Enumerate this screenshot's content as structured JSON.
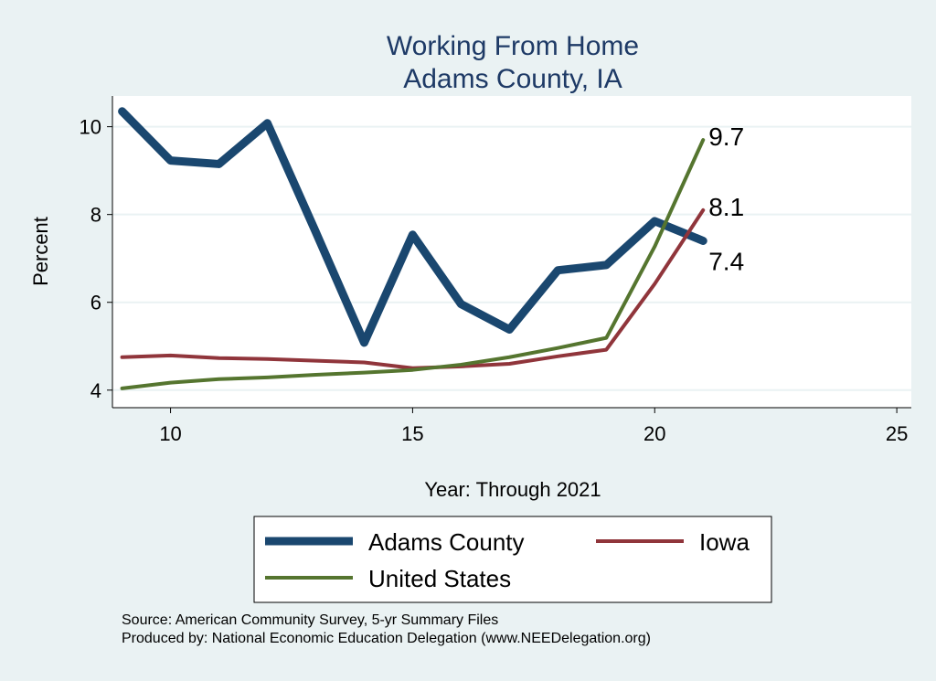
{
  "chart_data": {
    "type": "line",
    "title": "Working From Home",
    "subtitle": "Adams County, IA",
    "xlabel": "Year: Through 2021",
    "ylabel": "Percent",
    "xlim": [
      8.8,
      25.3
    ],
    "ylim": [
      3.6,
      10.7
    ],
    "xticks": [
      10,
      15,
      20,
      25
    ],
    "yticks": [
      4,
      6,
      8,
      10
    ],
    "grid": true,
    "legend_placement": "bottom",
    "x": [
      9,
      10,
      11,
      12,
      13,
      14,
      15,
      16,
      17,
      18,
      19,
      20,
      21
    ],
    "series": [
      {
        "name": "Adams County",
        "color": "#1a476f",
        "width": 9,
        "values": [
          10.35,
          9.23,
          9.15,
          10.08,
          7.6,
          5.08,
          7.54,
          5.96,
          5.38,
          6.73,
          6.85,
          7.85,
          7.4
        ],
        "end_label": "7.4"
      },
      {
        "name": "Iowa",
        "color": "#90353b",
        "width": 4,
        "values": [
          4.75,
          4.79,
          4.73,
          4.71,
          4.67,
          4.63,
          4.5,
          4.54,
          4.6,
          4.77,
          4.92,
          6.42,
          8.1
        ],
        "end_label": "8.1"
      },
      {
        "name": "United States",
        "color": "#55752f",
        "width": 4,
        "values": [
          4.04,
          4.17,
          4.25,
          4.29,
          4.35,
          4.4,
          4.46,
          4.58,
          4.75,
          4.96,
          5.19,
          7.27,
          9.7
        ],
        "end_label": "9.7"
      }
    ]
  },
  "notes": {
    "source": "Source: American Community Survey, 5-yr Summary Files",
    "produced": "Produced by: National Economic Education Delegation (www.NEEDelegation.org)"
  }
}
